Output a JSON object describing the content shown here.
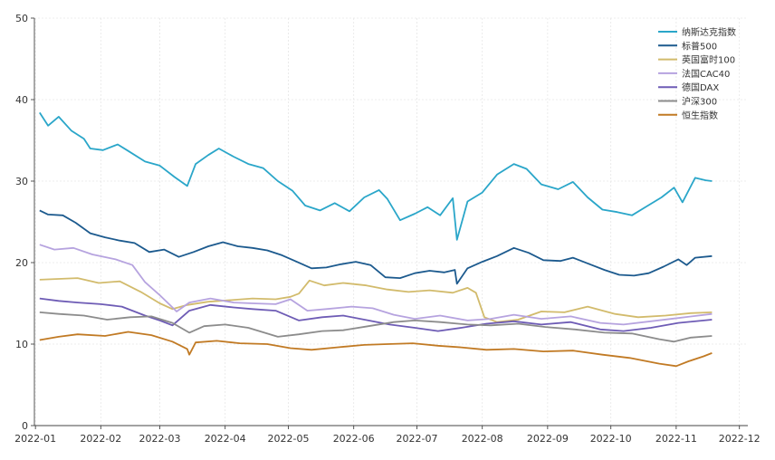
{
  "chart_data": {
    "type": "line",
    "title": "",
    "xlabel": "",
    "ylabel": "",
    "ylim": [
      0,
      50
    ],
    "yticks": [
      "0",
      "10",
      "20",
      "30",
      "40",
      "50"
    ],
    "xlim": [
      "2022-01-01",
      "2022-12-01"
    ],
    "xticks": [
      "2022-01",
      "2022-02",
      "2022-03",
      "2022-04",
      "2022-05",
      "2022-06",
      "2022-07",
      "2022-08",
      "2022-09",
      "2022-10",
      "2022-11",
      "2022-12"
    ],
    "grid": true,
    "legend_position": "top-right",
    "series": [
      {
        "name": "纳斯达克指数",
        "color": "#2aa6c9",
        "points": [
          [
            "2022-01-03",
            38.4
          ],
          [
            "2022-01-07",
            36.8
          ],
          [
            "2022-01-12",
            37.9
          ],
          [
            "2022-01-18",
            36.2
          ],
          [
            "2022-01-24",
            35.2
          ],
          [
            "2022-01-27",
            34.0
          ],
          [
            "2022-02-02",
            33.8
          ],
          [
            "2022-02-09",
            34.5
          ],
          [
            "2022-02-14",
            33.7
          ],
          [
            "2022-02-22",
            32.4
          ],
          [
            "2022-03-01",
            31.9
          ],
          [
            "2022-03-08",
            30.5
          ],
          [
            "2022-03-14",
            29.4
          ],
          [
            "2022-03-18",
            32.1
          ],
          [
            "2022-03-24",
            33.2
          ],
          [
            "2022-03-29",
            34.0
          ],
          [
            "2022-04-05",
            33.0
          ],
          [
            "2022-04-12",
            32.1
          ],
          [
            "2022-04-19",
            31.6
          ],
          [
            "2022-04-26",
            30.0
          ],
          [
            "2022-05-03",
            28.8
          ],
          [
            "2022-05-09",
            27.0
          ],
          [
            "2022-05-16",
            26.4
          ],
          [
            "2022-05-23",
            27.3
          ],
          [
            "2022-05-30",
            26.3
          ],
          [
            "2022-06-06",
            28.0
          ],
          [
            "2022-06-13",
            28.9
          ],
          [
            "2022-06-17",
            27.8
          ],
          [
            "2022-06-23",
            25.2
          ],
          [
            "2022-06-30",
            26.0
          ],
          [
            "2022-07-06",
            26.8
          ],
          [
            "2022-07-12",
            25.8
          ],
          [
            "2022-07-18",
            27.9
          ],
          [
            "2022-07-20",
            22.8
          ],
          [
            "2022-07-25",
            27.5
          ],
          [
            "2022-08-01",
            28.6
          ],
          [
            "2022-08-08",
            30.8
          ],
          [
            "2022-08-16",
            32.1
          ],
          [
            "2022-08-22",
            31.5
          ],
          [
            "2022-08-29",
            29.6
          ],
          [
            "2022-09-06",
            29.0
          ],
          [
            "2022-09-13",
            29.9
          ],
          [
            "2022-09-20",
            28.0
          ],
          [
            "2022-09-27",
            26.5
          ],
          [
            "2022-10-04",
            26.2
          ],
          [
            "2022-10-11",
            25.8
          ],
          [
            "2022-10-18",
            26.9
          ],
          [
            "2022-10-25",
            28.0
          ],
          [
            "2022-10-31",
            29.2
          ],
          [
            "2022-11-04",
            27.4
          ],
          [
            "2022-11-10",
            30.4
          ],
          [
            "2022-11-15",
            30.1
          ],
          [
            "2022-11-18",
            30.0
          ]
        ]
      },
      {
        "name": "标普500",
        "color": "#1c5a8e",
        "points": [
          [
            "2022-01-03",
            26.4
          ],
          [
            "2022-01-07",
            25.9
          ],
          [
            "2022-01-14",
            25.8
          ],
          [
            "2022-01-20",
            24.9
          ],
          [
            "2022-01-27",
            23.6
          ],
          [
            "2022-02-03",
            23.1
          ],
          [
            "2022-02-10",
            22.7
          ],
          [
            "2022-02-17",
            22.4
          ],
          [
            "2022-02-24",
            21.3
          ],
          [
            "2022-03-03",
            21.6
          ],
          [
            "2022-03-10",
            20.7
          ],
          [
            "2022-03-17",
            21.3
          ],
          [
            "2022-03-24",
            22.0
          ],
          [
            "2022-03-31",
            22.5
          ],
          [
            "2022-04-07",
            22.0
          ],
          [
            "2022-04-14",
            21.8
          ],
          [
            "2022-04-21",
            21.5
          ],
          [
            "2022-04-28",
            20.9
          ],
          [
            "2022-05-05",
            20.1
          ],
          [
            "2022-05-12",
            19.3
          ],
          [
            "2022-05-19",
            19.4
          ],
          [
            "2022-05-26",
            19.8
          ],
          [
            "2022-06-02",
            20.1
          ],
          [
            "2022-06-09",
            19.7
          ],
          [
            "2022-06-16",
            18.2
          ],
          [
            "2022-06-23",
            18.1
          ],
          [
            "2022-06-30",
            18.7
          ],
          [
            "2022-07-07",
            19.0
          ],
          [
            "2022-07-14",
            18.8
          ],
          [
            "2022-07-19",
            19.1
          ],
          [
            "2022-07-20",
            17.4
          ],
          [
            "2022-07-25",
            19.3
          ],
          [
            "2022-08-01",
            20.1
          ],
          [
            "2022-08-08",
            20.8
          ],
          [
            "2022-08-16",
            21.8
          ],
          [
            "2022-08-23",
            21.2
          ],
          [
            "2022-08-30",
            20.3
          ],
          [
            "2022-09-07",
            20.2
          ],
          [
            "2022-09-13",
            20.6
          ],
          [
            "2022-09-21",
            19.8
          ],
          [
            "2022-09-28",
            19.1
          ],
          [
            "2022-10-05",
            18.5
          ],
          [
            "2022-10-12",
            18.4
          ],
          [
            "2022-10-19",
            18.7
          ],
          [
            "2022-10-26",
            19.5
          ],
          [
            "2022-11-02",
            20.4
          ],
          [
            "2022-11-06",
            19.7
          ],
          [
            "2022-11-10",
            20.6
          ],
          [
            "2022-11-18",
            20.8
          ]
        ]
      },
      {
        "name": "英国富时100",
        "color": "#d2bb6c",
        "points": [
          [
            "2022-01-03",
            17.9
          ],
          [
            "2022-01-12",
            18.0
          ],
          [
            "2022-01-21",
            18.1
          ],
          [
            "2022-01-31",
            17.5
          ],
          [
            "2022-02-10",
            17.7
          ],
          [
            "2022-02-20",
            16.4
          ],
          [
            "2022-03-01",
            15.0
          ],
          [
            "2022-03-07",
            14.3
          ],
          [
            "2022-03-14",
            14.8
          ],
          [
            "2022-03-24",
            15.2
          ],
          [
            "2022-04-04",
            15.4
          ],
          [
            "2022-04-14",
            15.6
          ],
          [
            "2022-04-25",
            15.5
          ],
          [
            "2022-05-02",
            15.8
          ],
          [
            "2022-05-06",
            16.2
          ],
          [
            "2022-05-11",
            17.8
          ],
          [
            "2022-05-18",
            17.2
          ],
          [
            "2022-05-27",
            17.5
          ],
          [
            "2022-06-07",
            17.2
          ],
          [
            "2022-06-17",
            16.7
          ],
          [
            "2022-06-27",
            16.4
          ],
          [
            "2022-07-07",
            16.6
          ],
          [
            "2022-07-18",
            16.3
          ],
          [
            "2022-07-25",
            16.9
          ],
          [
            "2022-07-29",
            16.3
          ],
          [
            "2022-08-02",
            13.3
          ],
          [
            "2022-08-08",
            12.7
          ],
          [
            "2022-08-18",
            13.0
          ],
          [
            "2022-08-29",
            14.0
          ],
          [
            "2022-09-09",
            13.9
          ],
          [
            "2022-09-20",
            14.6
          ],
          [
            "2022-10-03",
            13.7
          ],
          [
            "2022-10-14",
            13.3
          ],
          [
            "2022-10-27",
            13.5
          ],
          [
            "2022-11-08",
            13.8
          ],
          [
            "2022-11-18",
            13.9
          ]
        ]
      },
      {
        "name": "法国CAC40",
        "color": "#b6a3df",
        "points": [
          [
            "2022-01-03",
            22.2
          ],
          [
            "2022-01-10",
            21.6
          ],
          [
            "2022-01-19",
            21.8
          ],
          [
            "2022-01-28",
            21.0
          ],
          [
            "2022-02-08",
            20.4
          ],
          [
            "2022-02-16",
            19.7
          ],
          [
            "2022-02-22",
            17.6
          ],
          [
            "2022-03-01",
            16.0
          ],
          [
            "2022-03-07",
            14.5
          ],
          [
            "2022-03-09",
            14.0
          ],
          [
            "2022-03-15",
            15.1
          ],
          [
            "2022-03-25",
            15.6
          ],
          [
            "2022-04-05",
            15.1
          ],
          [
            "2022-04-14",
            15.0
          ],
          [
            "2022-04-25",
            14.9
          ],
          [
            "2022-05-02",
            15.5
          ],
          [
            "2022-05-10",
            14.1
          ],
          [
            "2022-05-19",
            14.3
          ],
          [
            "2022-05-31",
            14.6
          ],
          [
            "2022-06-10",
            14.4
          ],
          [
            "2022-06-20",
            13.6
          ],
          [
            "2022-06-30",
            13.1
          ],
          [
            "2022-07-12",
            13.5
          ],
          [
            "2022-07-25",
            12.9
          ],
          [
            "2022-08-05",
            13.1
          ],
          [
            "2022-08-16",
            13.6
          ],
          [
            "2022-08-29",
            13.1
          ],
          [
            "2022-09-12",
            13.4
          ],
          [
            "2022-09-26",
            12.6
          ],
          [
            "2022-10-07",
            12.4
          ],
          [
            "2022-10-20",
            12.8
          ],
          [
            "2022-11-02",
            13.2
          ],
          [
            "2022-11-18",
            13.7
          ]
        ]
      },
      {
        "name": "德国DAX",
        "color": "#6e5cb5",
        "points": [
          [
            "2022-01-03",
            15.6
          ],
          [
            "2022-01-12",
            15.3
          ],
          [
            "2022-01-21",
            15.1
          ],
          [
            "2022-02-01",
            14.9
          ],
          [
            "2022-02-11",
            14.6
          ],
          [
            "2022-02-22",
            13.5
          ],
          [
            "2022-03-01",
            12.9
          ],
          [
            "2022-03-07",
            12.3
          ],
          [
            "2022-03-15",
            14.1
          ],
          [
            "2022-03-25",
            14.8
          ],
          [
            "2022-04-05",
            14.5
          ],
          [
            "2022-04-14",
            14.3
          ],
          [
            "2022-04-25",
            14.1
          ],
          [
            "2022-05-06",
            12.9
          ],
          [
            "2022-05-17",
            13.3
          ],
          [
            "2022-05-27",
            13.5
          ],
          [
            "2022-06-08",
            12.9
          ],
          [
            "2022-06-18",
            12.4
          ],
          [
            "2022-06-30",
            12.0
          ],
          [
            "2022-07-11",
            11.6
          ],
          [
            "2022-07-22",
            12.0
          ],
          [
            "2022-08-03",
            12.5
          ],
          [
            "2022-08-16",
            12.8
          ],
          [
            "2022-08-29",
            12.4
          ],
          [
            "2022-09-12",
            12.7
          ],
          [
            "2022-09-26",
            11.8
          ],
          [
            "2022-10-07",
            11.6
          ],
          [
            "2022-10-20",
            12.0
          ],
          [
            "2022-11-02",
            12.6
          ],
          [
            "2022-11-18",
            13.0
          ]
        ]
      },
      {
        "name": "沪深300",
        "color": "#8c8c8c",
        "points": [
          [
            "2022-01-03",
            13.9
          ],
          [
            "2022-01-12",
            13.7
          ],
          [
            "2022-01-24",
            13.5
          ],
          [
            "2022-02-04",
            13.0
          ],
          [
            "2022-02-15",
            13.3
          ],
          [
            "2022-02-25",
            13.4
          ],
          [
            "2022-03-07",
            12.6
          ],
          [
            "2022-03-15",
            11.4
          ],
          [
            "2022-03-22",
            12.2
          ],
          [
            "2022-04-01",
            12.4
          ],
          [
            "2022-04-12",
            12.0
          ],
          [
            "2022-04-26",
            10.9
          ],
          [
            "2022-05-06",
            11.2
          ],
          [
            "2022-05-17",
            11.6
          ],
          [
            "2022-05-27",
            11.7
          ],
          [
            "2022-06-08",
            12.2
          ],
          [
            "2022-06-20",
            12.7
          ],
          [
            "2022-06-30",
            12.9
          ],
          [
            "2022-07-12",
            12.7
          ],
          [
            "2022-07-25",
            12.4
          ],
          [
            "2022-08-05",
            12.3
          ],
          [
            "2022-08-18",
            12.5
          ],
          [
            "2022-08-31",
            12.1
          ],
          [
            "2022-09-14",
            11.8
          ],
          [
            "2022-09-28",
            11.4
          ],
          [
            "2022-10-11",
            11.3
          ],
          [
            "2022-10-24",
            10.6
          ],
          [
            "2022-10-31",
            10.3
          ],
          [
            "2022-11-08",
            10.8
          ],
          [
            "2022-11-18",
            11.0
          ]
        ]
      },
      {
        "name": "恒生指数",
        "color": "#c17a24",
        "points": [
          [
            "2022-01-03",
            10.5
          ],
          [
            "2022-01-12",
            10.9
          ],
          [
            "2022-01-21",
            11.2
          ],
          [
            "2022-02-03",
            11.0
          ],
          [
            "2022-02-14",
            11.5
          ],
          [
            "2022-02-25",
            11.1
          ],
          [
            "2022-03-07",
            10.3
          ],
          [
            "2022-03-14",
            9.4
          ],
          [
            "2022-03-15",
            8.7
          ],
          [
            "2022-03-18",
            10.2
          ],
          [
            "2022-03-28",
            10.4
          ],
          [
            "2022-04-08",
            10.1
          ],
          [
            "2022-04-21",
            10.0
          ],
          [
            "2022-05-02",
            9.5
          ],
          [
            "2022-05-12",
            9.3
          ],
          [
            "2022-05-24",
            9.6
          ],
          [
            "2022-06-06",
            9.9
          ],
          [
            "2022-06-17",
            10.0
          ],
          [
            "2022-06-29",
            10.1
          ],
          [
            "2022-07-11",
            9.8
          ],
          [
            "2022-07-22",
            9.6
          ],
          [
            "2022-08-03",
            9.3
          ],
          [
            "2022-08-16",
            9.4
          ],
          [
            "2022-08-30",
            9.1
          ],
          [
            "2022-09-13",
            9.2
          ],
          [
            "2022-09-27",
            8.7
          ],
          [
            "2022-10-10",
            8.3
          ],
          [
            "2022-10-24",
            7.6
          ],
          [
            "2022-11-01",
            7.3
          ],
          [
            "2022-11-07",
            7.9
          ],
          [
            "2022-11-14",
            8.5
          ],
          [
            "2022-11-18",
            8.9
          ]
        ]
      }
    ]
  }
}
